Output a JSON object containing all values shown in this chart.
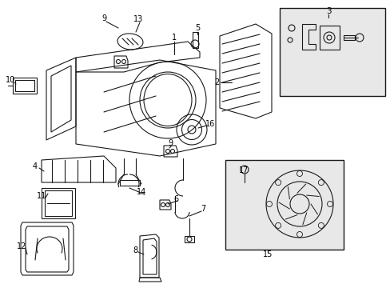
{
  "bg_color": "#ffffff",
  "box3_color": "#e8e8e8",
  "box15_color": "#e8e8e8",
  "lc": "#1a1a1a",
  "lw": 0.8,
  "labels": {
    "1": [
      218,
      52,
      0
    ],
    "2": [
      271,
      107,
      0
    ],
    "3": [
      410,
      12,
      0
    ],
    "4": [
      44,
      212,
      0
    ],
    "5": [
      247,
      38,
      0
    ],
    "6": [
      220,
      253,
      0
    ],
    "7": [
      254,
      265,
      0
    ],
    "8": [
      169,
      317,
      0
    ],
    "9a": [
      130,
      27,
      0
    ],
    "9b": [
      213,
      183,
      0
    ],
    "10": [
      13,
      104,
      0
    ],
    "11": [
      52,
      249,
      0
    ],
    "12": [
      27,
      312,
      0
    ],
    "13": [
      173,
      28,
      0
    ],
    "14": [
      177,
      244,
      0
    ],
    "15": [
      335,
      318,
      0
    ],
    "16": [
      263,
      159,
      0
    ],
    "17": [
      305,
      213,
      0
    ]
  }
}
